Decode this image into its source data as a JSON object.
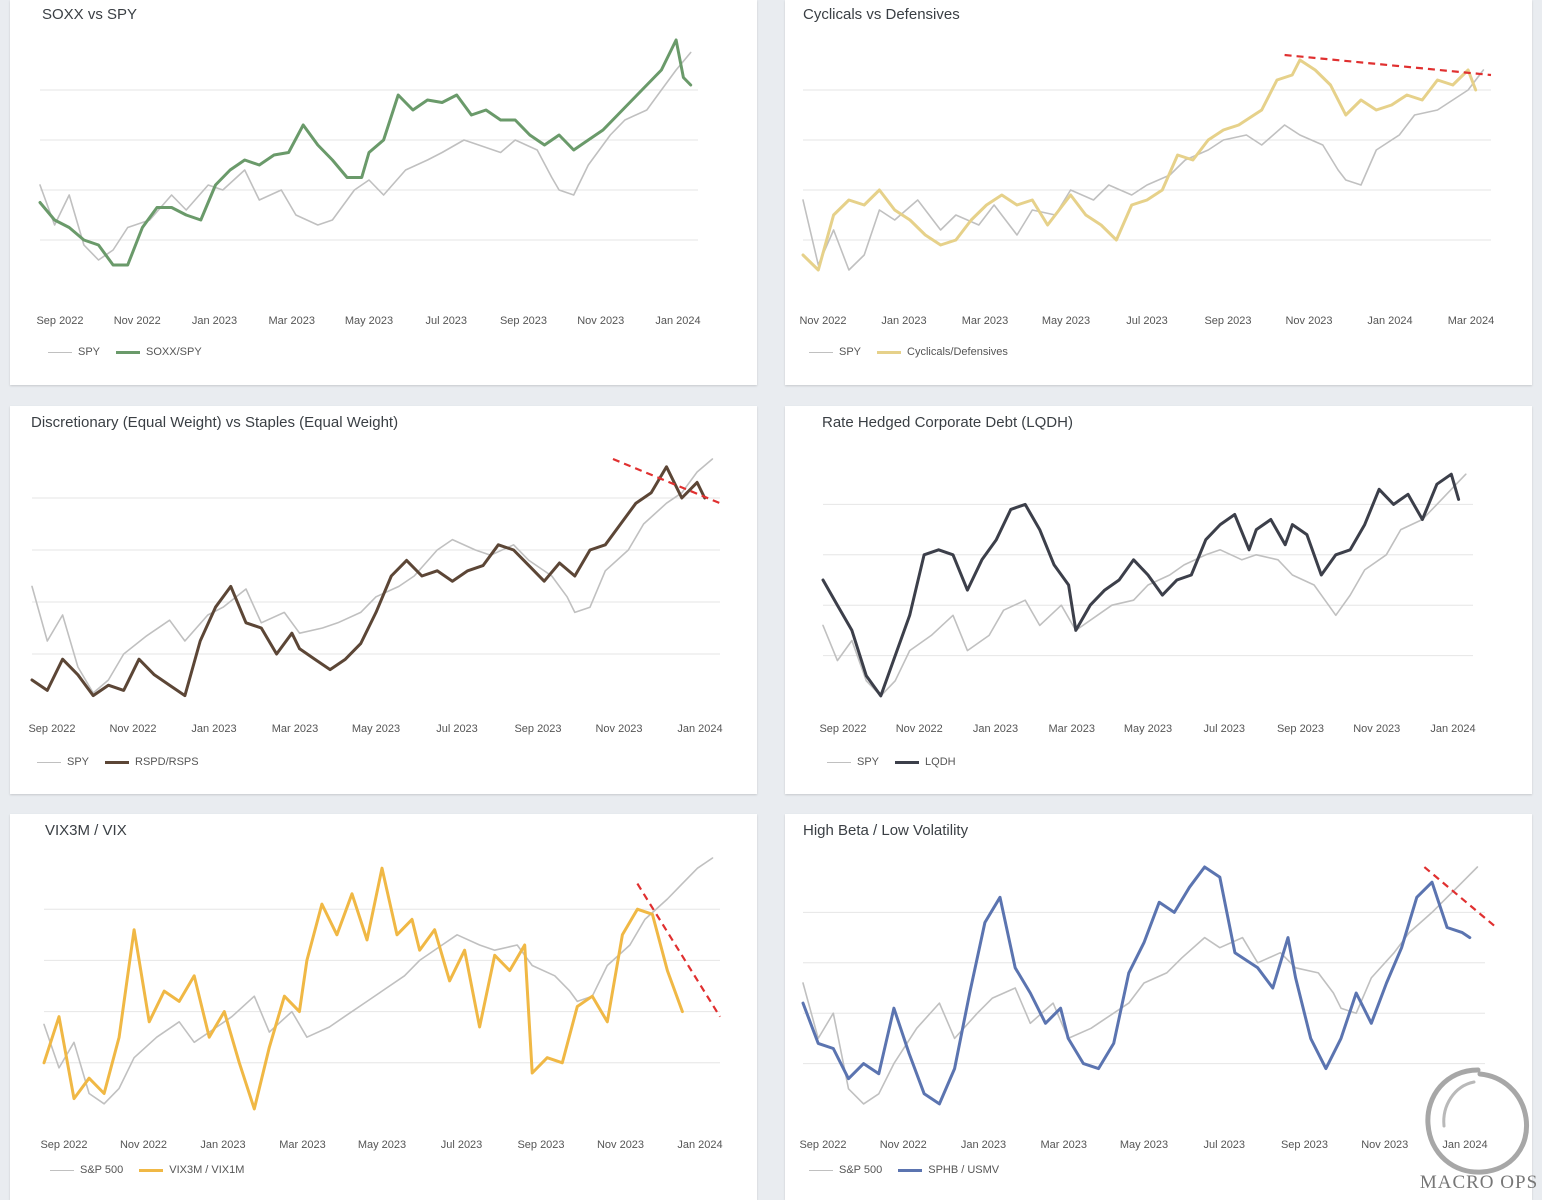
{
  "colors": {
    "benchmark": "#c0c0c0",
    "trend": "#e03030",
    "grid": "#e6e6e6"
  },
  "watermark": {
    "text": "MACRO OPS"
  },
  "charts": [
    {
      "id": "soxx",
      "title": "SOXX vs SPY",
      "type": "line",
      "x_labels": [
        "Sep 2022",
        "Nov 2022",
        "Jan 2023",
        "Mar 2023",
        "May 2023",
        "Jul 2023",
        "Sep 2023",
        "Nov 2023",
        "Jan 2024"
      ],
      "x_range": [
        0,
        18
      ],
      "y_range": [
        0,
        100
      ],
      "gridlines": [
        20,
        40,
        60,
        80
      ],
      "benchmark": {
        "name": "SPY",
        "color": "#c0c0c0",
        "x": [
          0,
          0.4,
          0.8,
          1.2,
          1.6,
          2,
          2.4,
          3,
          3.6,
          4,
          4.6,
          5,
          5.6,
          6,
          6.6,
          7,
          7.6,
          8,
          8.6,
          9,
          9.4,
          10,
          10.6,
          11,
          11.6,
          12,
          12.6,
          13,
          13.6,
          14,
          14.2,
          14.6,
          15,
          15.6,
          16,
          16.6,
          17,
          17.4,
          17.8
        ],
        "y": [
          42,
          26,
          38,
          18,
          12,
          16,
          25,
          28,
          38,
          32,
          42,
          40,
          48,
          36,
          40,
          30,
          26,
          28,
          40,
          44,
          38,
          48,
          52,
          55,
          60,
          58,
          55,
          60,
          56,
          45,
          40,
          38,
          50,
          62,
          68,
          72,
          80,
          88,
          95
        ]
      },
      "main": {
        "name": "SOXX/SPY",
        "color": "#6a9a6a",
        "x": [
          0,
          0.4,
          0.8,
          1.2,
          1.6,
          2,
          2.4,
          2.8,
          3.2,
          3.6,
          4,
          4.4,
          4.8,
          5.2,
          5.6,
          6,
          6.4,
          6.8,
          7.2,
          7.6,
          8,
          8.4,
          8.8,
          9,
          9.4,
          9.8,
          10.2,
          10.6,
          11,
          11.4,
          11.8,
          12.2,
          12.6,
          13,
          13.4,
          13.8,
          14.2,
          14.6,
          15,
          15.4,
          15.8,
          16.2,
          16.6,
          17,
          17.4,
          17.6,
          17.8
        ],
        "y": [
          35,
          28,
          25,
          20,
          18,
          10,
          10,
          25,
          33,
          33,
          30,
          28,
          42,
          48,
          52,
          50,
          54,
          55,
          66,
          58,
          52,
          45,
          45,
          55,
          60,
          78,
          72,
          76,
          75,
          78,
          70,
          72,
          68,
          68,
          62,
          58,
          62,
          56,
          60,
          64,
          70,
          76,
          82,
          88,
          100,
          85,
          82
        ]
      },
      "trend": null
    },
    {
      "id": "cyc",
      "title": "Cyclicals vs Defensives",
      "type": "line",
      "x_labels": [
        "Nov 2022",
        "Jan 2023",
        "Mar 2023",
        "May 2023",
        "Jul 2023",
        "Sep 2023",
        "Nov 2023",
        "Jan 2024",
        "Mar 2024"
      ],
      "x_range": [
        0,
        18
      ],
      "y_range": [
        0,
        100
      ],
      "gridlines": [
        20,
        40,
        60,
        80
      ],
      "benchmark": {
        "name": "SPY",
        "color": "#c0c0c0",
        "x": [
          0,
          0.4,
          0.8,
          1.2,
          1.6,
          2,
          2.4,
          3,
          3.6,
          4,
          4.6,
          5,
          5.6,
          6,
          6.6,
          7,
          7.6,
          8,
          8.6,
          9,
          9.6,
          10,
          10.6,
          11,
          11.6,
          12,
          12.6,
          13,
          13.6,
          14,
          14.2,
          14.6,
          15,
          15.6,
          16,
          16.6,
          17,
          17.4,
          17.8
        ],
        "y": [
          36,
          10,
          24,
          8,
          14,
          32,
          28,
          36,
          24,
          30,
          26,
          34,
          22,
          32,
          30,
          40,
          36,
          42,
          38,
          42,
          46,
          52,
          56,
          60,
          62,
          58,
          66,
          62,
          58,
          48,
          44,
          42,
          56,
          62,
          70,
          72,
          76,
          80,
          88
        ]
      },
      "main": {
        "name": "Cyclicals/Defensives",
        "color": "#e6d18a",
        "x": [
          0,
          0.4,
          0.8,
          1.2,
          1.6,
          2,
          2.4,
          2.8,
          3.2,
          3.6,
          4,
          4.4,
          4.8,
          5.2,
          5.6,
          6,
          6.4,
          6.8,
          7,
          7.4,
          7.8,
          8.2,
          8.6,
          9,
          9.4,
          9.8,
          10.2,
          10.6,
          11,
          11.4,
          11.8,
          12,
          12.4,
          12.8,
          13,
          13.4,
          13.8,
          14.2,
          14.6,
          15,
          15.4,
          15.8,
          16.2,
          16.6,
          17,
          17.4,
          17.6
        ],
        "y": [
          14,
          8,
          30,
          36,
          34,
          40,
          32,
          28,
          22,
          18,
          20,
          28,
          34,
          38,
          34,
          36,
          26,
          34,
          38,
          30,
          26,
          20,
          34,
          36,
          40,
          54,
          52,
          60,
          64,
          66,
          70,
          72,
          84,
          86,
          92,
          88,
          82,
          70,
          76,
          72,
          74,
          78,
          76,
          84,
          82,
          88,
          80
        ]
      },
      "trend": {
        "x0": 12.6,
        "y0": 94,
        "x1": 18,
        "y1": 86
      }
    },
    {
      "id": "disc",
      "title": "Discretionary (Equal Weight) vs Staples (Equal Weight)",
      "type": "line",
      "x_labels": [
        "Sep 2022",
        "Nov 2022",
        "Jan 2023",
        "Mar 2023",
        "May 2023",
        "Jul 2023",
        "Sep 2023",
        "Nov 2023",
        "Jan 2024"
      ],
      "x_range": [
        0,
        18
      ],
      "y_range": [
        0,
        100
      ],
      "gridlines": [
        20,
        40,
        60,
        80
      ],
      "benchmark": {
        "name": "SPY",
        "color": "#c0c0c0",
        "x": [
          0,
          0.4,
          0.8,
          1.2,
          1.6,
          2,
          2.4,
          3,
          3.6,
          4,
          4.6,
          5,
          5.6,
          6,
          6.6,
          7,
          7.6,
          8,
          8.6,
          9,
          9.6,
          10,
          10.6,
          11,
          11.6,
          12,
          12.6,
          13,
          13.6,
          14,
          14.2,
          14.6,
          15,
          15.6,
          16,
          16.6,
          17,
          17.4,
          17.8
        ],
        "y": [
          46,
          25,
          35,
          15,
          5,
          10,
          20,
          27,
          33,
          25,
          35,
          38,
          45,
          32,
          36,
          28,
          30,
          32,
          36,
          42,
          46,
          50,
          60,
          64,
          60,
          58,
          62,
          56,
          50,
          42,
          36,
          38,
          52,
          60,
          70,
          78,
          82,
          90,
          95
        ]
      },
      "main": {
        "name": "RSPD/RSPS",
        "color": "#5c4636",
        "x": [
          0,
          0.4,
          0.8,
          1.2,
          1.6,
          2,
          2.4,
          2.8,
          3.2,
          3.6,
          4,
          4.4,
          4.8,
          5.2,
          5.6,
          6,
          6.4,
          6.8,
          7,
          7.4,
          7.8,
          8.2,
          8.6,
          9,
          9.4,
          9.8,
          10.2,
          10.6,
          11,
          11.4,
          11.8,
          12.2,
          12.6,
          13,
          13.4,
          13.8,
          14.2,
          14.6,
          15,
          15.4,
          15.8,
          16.2,
          16.6,
          17,
          17.4,
          17.6
        ],
        "y": [
          10,
          6,
          18,
          12,
          4,
          8,
          6,
          18,
          12,
          8,
          4,
          25,
          38,
          46,
          32,
          30,
          20,
          28,
          22,
          18,
          14,
          18,
          24,
          36,
          50,
          56,
          50,
          52,
          48,
          52,
          54,
          62,
          60,
          54,
          48,
          55,
          50,
          60,
          62,
          70,
          78,
          82,
          92,
          80,
          86,
          80
        ]
      },
      "trend": {
        "x0": 15.2,
        "y0": 95,
        "x1": 18,
        "y1": 78
      }
    },
    {
      "id": "lqdh",
      "title": "Rate Hedged Corporate Debt (LQDH)",
      "type": "line",
      "x_labels": [
        "Sep 2022",
        "Nov 2022",
        "Jan 2023",
        "Mar 2023",
        "May 2023",
        "Jul 2023",
        "Sep 2023",
        "Nov 2023",
        "Jan 2024"
      ],
      "x_range": [
        0,
        18
      ],
      "y_range": [
        0,
        100
      ],
      "gridlines": [
        20,
        40,
        60,
        80
      ],
      "benchmark": {
        "name": "SPY",
        "color": "#c0c0c0",
        "x": [
          0,
          0.4,
          0.8,
          1.2,
          1.6,
          2,
          2.4,
          3,
          3.6,
          4,
          4.6,
          5,
          5.6,
          6,
          6.6,
          7,
          7.6,
          8,
          8.6,
          9,
          9.6,
          10,
          10.6,
          11,
          11.6,
          12,
          12.6,
          13,
          13.6,
          14,
          14.2,
          14.6,
          15,
          15.6,
          16,
          16.6,
          17,
          17.4,
          17.8
        ],
        "y": [
          32,
          18,
          26,
          10,
          4,
          10,
          22,
          28,
          36,
          22,
          28,
          38,
          42,
          32,
          40,
          30,
          36,
          40,
          42,
          48,
          52,
          56,
          60,
          62,
          58,
          60,
          58,
          52,
          48,
          40,
          36,
          44,
          54,
          60,
          70,
          74,
          80,
          86,
          92
        ]
      },
      "main": {
        "name": "LQDH",
        "color": "#3c3f4a",
        "x": [
          0,
          0.4,
          0.8,
          1.2,
          1.6,
          2,
          2.4,
          2.8,
          3.2,
          3.6,
          4,
          4.4,
          4.8,
          5.2,
          5.6,
          6,
          6.4,
          6.8,
          7,
          7.4,
          7.8,
          8.2,
          8.6,
          9,
          9.4,
          9.8,
          10.2,
          10.6,
          11,
          11.4,
          11.8,
          12,
          12.4,
          12.8,
          13,
          13.4,
          13.8,
          14.2,
          14.6,
          15,
          15.4,
          15.8,
          16.2,
          16.6,
          17,
          17.4,
          17.6
        ],
        "y": [
          50,
          40,
          30,
          12,
          4,
          20,
          36,
          60,
          62,
          60,
          46,
          58,
          66,
          78,
          80,
          70,
          56,
          48,
          30,
          40,
          46,
          50,
          58,
          52,
          44,
          50,
          52,
          66,
          72,
          76,
          62,
          70,
          74,
          64,
          72,
          68,
          52,
          60,
          62,
          72,
          86,
          80,
          84,
          74,
          88,
          92,
          82
        ]
      },
      "trend": null
    },
    {
      "id": "vix",
      "title": "VIX3M / VIX",
      "type": "line",
      "x_labels": [
        "Sep 2022",
        "Nov 2022",
        "Jan 2023",
        "Mar 2023",
        "May 2023",
        "Jul 2023",
        "Sep 2023",
        "Nov 2023",
        "Jan 2024"
      ],
      "x_range": [
        0,
        18
      ],
      "y_range": [
        0,
        100
      ],
      "gridlines": [
        20,
        40,
        60,
        80
      ],
      "benchmark": {
        "name": "S&P 500",
        "color": "#c0c0c0",
        "x": [
          0,
          0.4,
          0.8,
          1.2,
          1.6,
          2,
          2.4,
          3,
          3.6,
          4,
          4.6,
          5,
          5.6,
          6,
          6.6,
          7,
          7.6,
          8,
          8.6,
          9,
          9.6,
          10,
          10.6,
          11,
          11.6,
          12,
          12.6,
          13,
          13.6,
          14,
          14.2,
          14.6,
          15,
          15.6,
          16,
          16.6,
          17,
          17.4,
          17.8
        ],
        "y": [
          35,
          18,
          28,
          8,
          4,
          10,
          22,
          30,
          36,
          28,
          34,
          38,
          46,
          32,
          40,
          30,
          34,
          38,
          44,
          48,
          54,
          60,
          66,
          70,
          66,
          64,
          66,
          58,
          54,
          48,
          44,
          46,
          58,
          66,
          76,
          84,
          90,
          96,
          100
        ]
      },
      "main": {
        "name": "VIX3M / VIX1M",
        "color": "#f0b845",
        "x": [
          0,
          0.4,
          0.8,
          1.2,
          1.6,
          2,
          2.4,
          2.8,
          3.2,
          3.6,
          4,
          4.4,
          4.8,
          5.2,
          5.6,
          6,
          6.4,
          6.8,
          7,
          7.4,
          7.8,
          8.2,
          8.6,
          9,
          9.4,
          9.8,
          10,
          10.4,
          10.8,
          11.2,
          11.6,
          12,
          12.4,
          12.8,
          13,
          13.4,
          13.8,
          14.2,
          14.6,
          15,
          15.4,
          15.8,
          16.2,
          16.6,
          17
        ],
        "y": [
          20,
          38,
          6,
          14,
          8,
          30,
          72,
          36,
          48,
          44,
          54,
          30,
          40,
          20,
          2,
          26,
          46,
          40,
          60,
          82,
          70,
          86,
          68,
          96,
          70,
          76,
          64,
          72,
          52,
          64,
          34,
          62,
          56,
          66,
          16,
          22,
          20,
          42,
          46,
          36,
          70,
          80,
          78,
          56,
          40
        ]
      },
      "trend": {
        "x0": 15.8,
        "y0": 90,
        "x1": 18,
        "y1": 38
      }
    },
    {
      "id": "beta",
      "title": "High Beta / Low Volatility",
      "type": "line",
      "x_labels": [
        "Sep 2022",
        "Nov 2022",
        "Jan 2023",
        "Mar 2023",
        "May 2023",
        "Jul 2023",
        "Sep 2023",
        "Nov 2023",
        "Jan 2024"
      ],
      "x_range": [
        0,
        18
      ],
      "y_range": [
        0,
        100
      ],
      "gridlines": [
        20,
        40,
        60,
        80
      ],
      "benchmark": {
        "name": "S&P 500",
        "color": "#c0c0c0",
        "x": [
          0,
          0.4,
          0.8,
          1.2,
          1.6,
          2,
          2.4,
          3,
          3.6,
          4,
          4.6,
          5,
          5.6,
          6,
          6.6,
          7,
          7.6,
          8,
          8.6,
          9,
          9.6,
          10,
          10.6,
          11,
          11.6,
          12,
          12.6,
          13,
          13.6,
          14,
          14.2,
          14.6,
          15,
          15.6,
          16,
          16.6,
          17,
          17.4,
          17.8
        ],
        "y": [
          52,
          30,
          40,
          10,
          4,
          8,
          20,
          34,
          44,
          30,
          40,
          46,
          50,
          36,
          44,
          30,
          34,
          38,
          44,
          52,
          56,
          62,
          70,
          66,
          70,
          60,
          64,
          58,
          56,
          48,
          42,
          40,
          54,
          64,
          72,
          80,
          86,
          92,
          98
        ]
      },
      "main": {
        "name": "SPHB / USMV",
        "color": "#5b74b0",
        "x": [
          0,
          0.4,
          0.8,
          1.2,
          1.6,
          2,
          2.4,
          2.8,
          3.2,
          3.6,
          4,
          4.4,
          4.8,
          5.2,
          5.6,
          6,
          6.4,
          6.8,
          7,
          7.4,
          7.8,
          8.2,
          8.6,
          9,
          9.4,
          9.8,
          10.2,
          10.6,
          11,
          11.4,
          11.8,
          12,
          12.4,
          12.8,
          13,
          13.4,
          13.8,
          14.2,
          14.6,
          15,
          15.4,
          15.8,
          16.2,
          16.6,
          17,
          17.4,
          17.6
        ],
        "y": [
          44,
          28,
          26,
          14,
          20,
          16,
          42,
          24,
          8,
          4,
          18,
          48,
          76,
          86,
          58,
          48,
          36,
          42,
          30,
          20,
          18,
          28,
          56,
          68,
          84,
          80,
          90,
          98,
          94,
          64,
          60,
          58,
          50,
          70,
          54,
          30,
          18,
          30,
          48,
          36,
          52,
          66,
          86,
          92,
          74,
          72,
          70
        ]
      },
      "trend": {
        "x0": 16.4,
        "y0": 98,
        "x1": 18.3,
        "y1": 74
      }
    }
  ]
}
